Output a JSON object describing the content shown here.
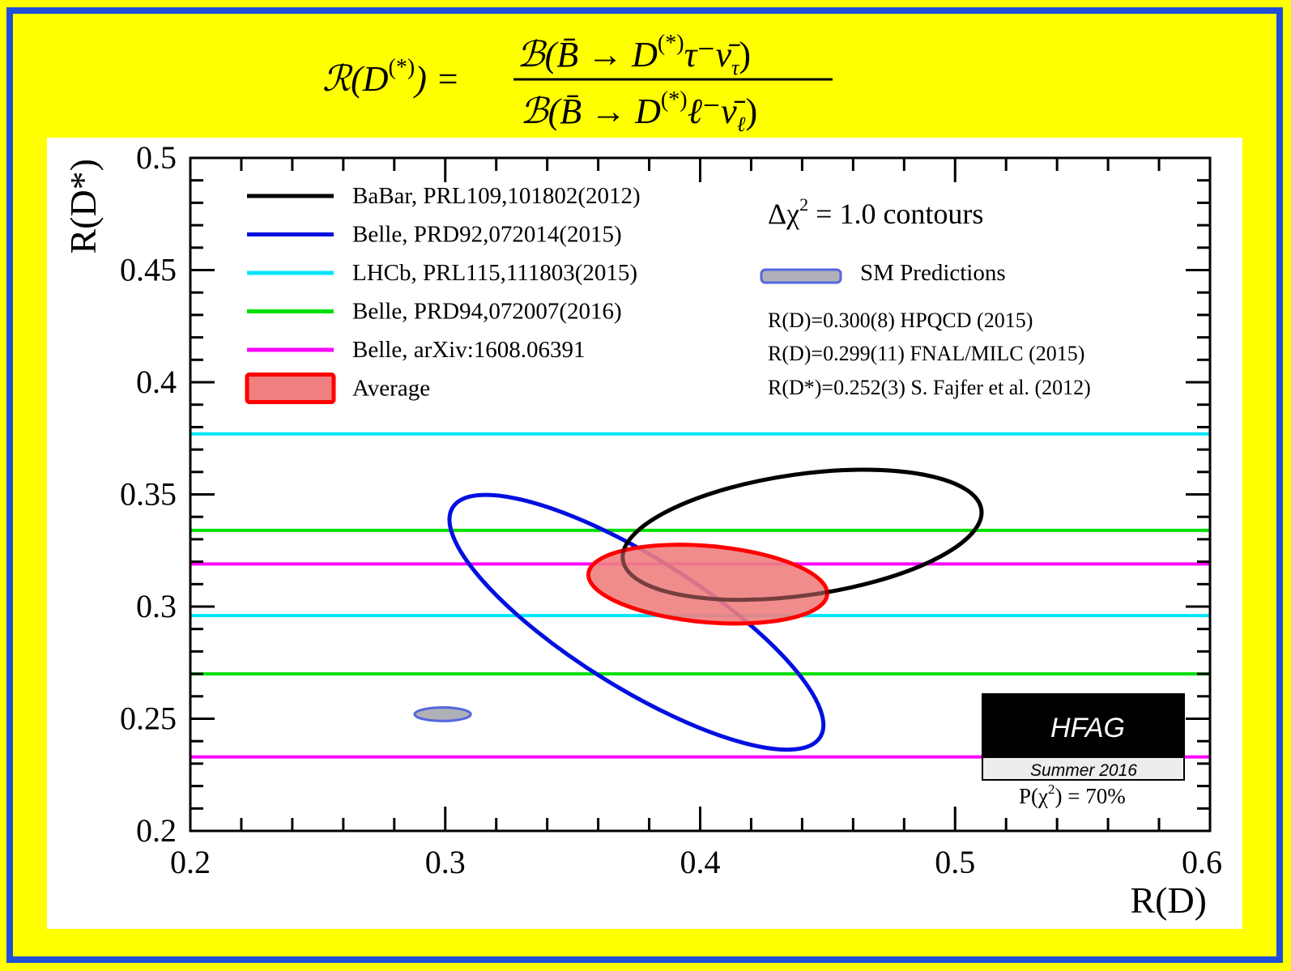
{
  "formula": {
    "lhs_base": "ℛ(D",
    "lhs_sup": "(*)",
    "lhs_close": ") =",
    "numerator_pre": "ℬ(B̄ → D",
    "numerator_sup": "(*)",
    "numerator_post": "τ⁻ν̄",
    "numerator_sub": "τ",
    "numerator_close": ")",
    "denominator_pre": "ℬ(B̄ → D",
    "denominator_sup": "(*)",
    "denominator_post": "ℓ⁻ν̄",
    "denominator_sub": "ℓ",
    "denominator_close": ")"
  },
  "colors": {
    "background": "#ffff00",
    "border": "#1f4fd8",
    "plot_bg": "#ffffff",
    "babar": "#000000",
    "belle_2015": "#0010e0",
    "lhcb": "#00e5ff",
    "belle_2016": "#00e000",
    "belle_arxiv": "#ff00ff",
    "average_stroke": "#ff0000",
    "average_fill": "#f08080",
    "sm_stroke": "#5566dd",
    "sm_fill": "#b0b0b8"
  },
  "chart_data": {
    "type": "contour",
    "xlabel": "R(D)",
    "ylabel": "R(D*)",
    "xlim": [
      0.2,
      0.6
    ],
    "ylim": [
      0.2,
      0.5
    ],
    "xticks": [
      "0.2",
      "0.3",
      "0.4",
      "0.5",
      "0.6"
    ],
    "yticks": [
      "0.2",
      "0.25",
      "0.3",
      "0.35",
      "0.4",
      "0.45",
      "0.5"
    ],
    "xtick_values": [
      0.2,
      0.3,
      0.4,
      0.5,
      0.6
    ],
    "ytick_values": [
      0.2,
      0.25,
      0.3,
      0.35,
      0.4,
      0.45,
      0.5
    ],
    "grid": false,
    "legend_position": "top-left",
    "legend": [
      {
        "label": "BaBar, PRL109,101802(2012)",
        "color": "#000000",
        "kind": "line"
      },
      {
        "label": "Belle, PRD92,072014(2015)",
        "color": "#0010e0",
        "kind": "line"
      },
      {
        "label": "LHCb, PRL115,111803(2015)",
        "color": "#00e5ff",
        "kind": "line"
      },
      {
        "label": "Belle, PRD94,072007(2016)",
        "color": "#00e000",
        "kind": "line"
      },
      {
        "label": "Belle, arXiv:1608.06391",
        "color": "#ff00ff",
        "kind": "line"
      },
      {
        "label": "Average",
        "color": "#ff0000",
        "kind": "box"
      }
    ],
    "horizontal_bands": [
      {
        "name": "LHCb, PRL115,111803(2015)",
        "color": "#00e5ff",
        "lower": 0.296,
        "upper": 0.377
      },
      {
        "name": "Belle, PRD94,072007(2016)",
        "color": "#00e000",
        "lower": 0.27,
        "upper": 0.334
      },
      {
        "name": "Belle, arXiv:1608.06391",
        "color": "#ff00ff",
        "lower": 0.233,
        "upper": 0.319
      }
    ],
    "ellipses": [
      {
        "name": "BaBar, PRL109,101802(2012)",
        "cx": 0.44,
        "cy": 0.332,
        "rx": 0.071,
        "ry": 0.027,
        "tilt_deg": -8,
        "stroke": "#000000",
        "fill": "none"
      },
      {
        "name": "Belle, PRD92,072014(2015)",
        "cx": 0.375,
        "cy": 0.293,
        "rx": 0.085,
        "ry": 0.029,
        "tilt_deg": 32,
        "stroke": "#0010e0",
        "fill": "none"
      },
      {
        "name": "Average",
        "cx": 0.403,
        "cy": 0.31,
        "rx": 0.047,
        "ry": 0.017,
        "tilt_deg": 5,
        "stroke": "#ff0000",
        "fill": "#f08080"
      },
      {
        "name": "SM R(D)=0.300(8)",
        "cx": 0.3,
        "cy": 0.252,
        "rx": 0.008,
        "ry": 0.003,
        "tilt_deg": 0,
        "stroke": "#5566dd",
        "fill": "#b0b0b8"
      },
      {
        "name": "SM R(D)=0.299(11)",
        "cx": 0.299,
        "cy": 0.252,
        "rx": 0.011,
        "ry": 0.003,
        "tilt_deg": 0,
        "stroke": "#5566dd",
        "fill": "#b0b0b8"
      }
    ],
    "annotations": {
      "contours_base": "Δχ",
      "contours_sup": "2",
      "contours_rest": " = 1.0 contours",
      "sm_label": "SM Predictions",
      "sm_lines": [
        "R(D)=0.300(8) HPQCD (2015)",
        "R(D)=0.299(11) FNAL/MILC (2015)",
        "R(D*)=0.252(3) S. Fajfer et al. (2012)"
      ],
      "hfag": "HFAG",
      "season": "Summer 2016",
      "pchi_pre": "P(χ",
      "pchi_sup": "2",
      "pchi_post": ") = 70%"
    }
  }
}
